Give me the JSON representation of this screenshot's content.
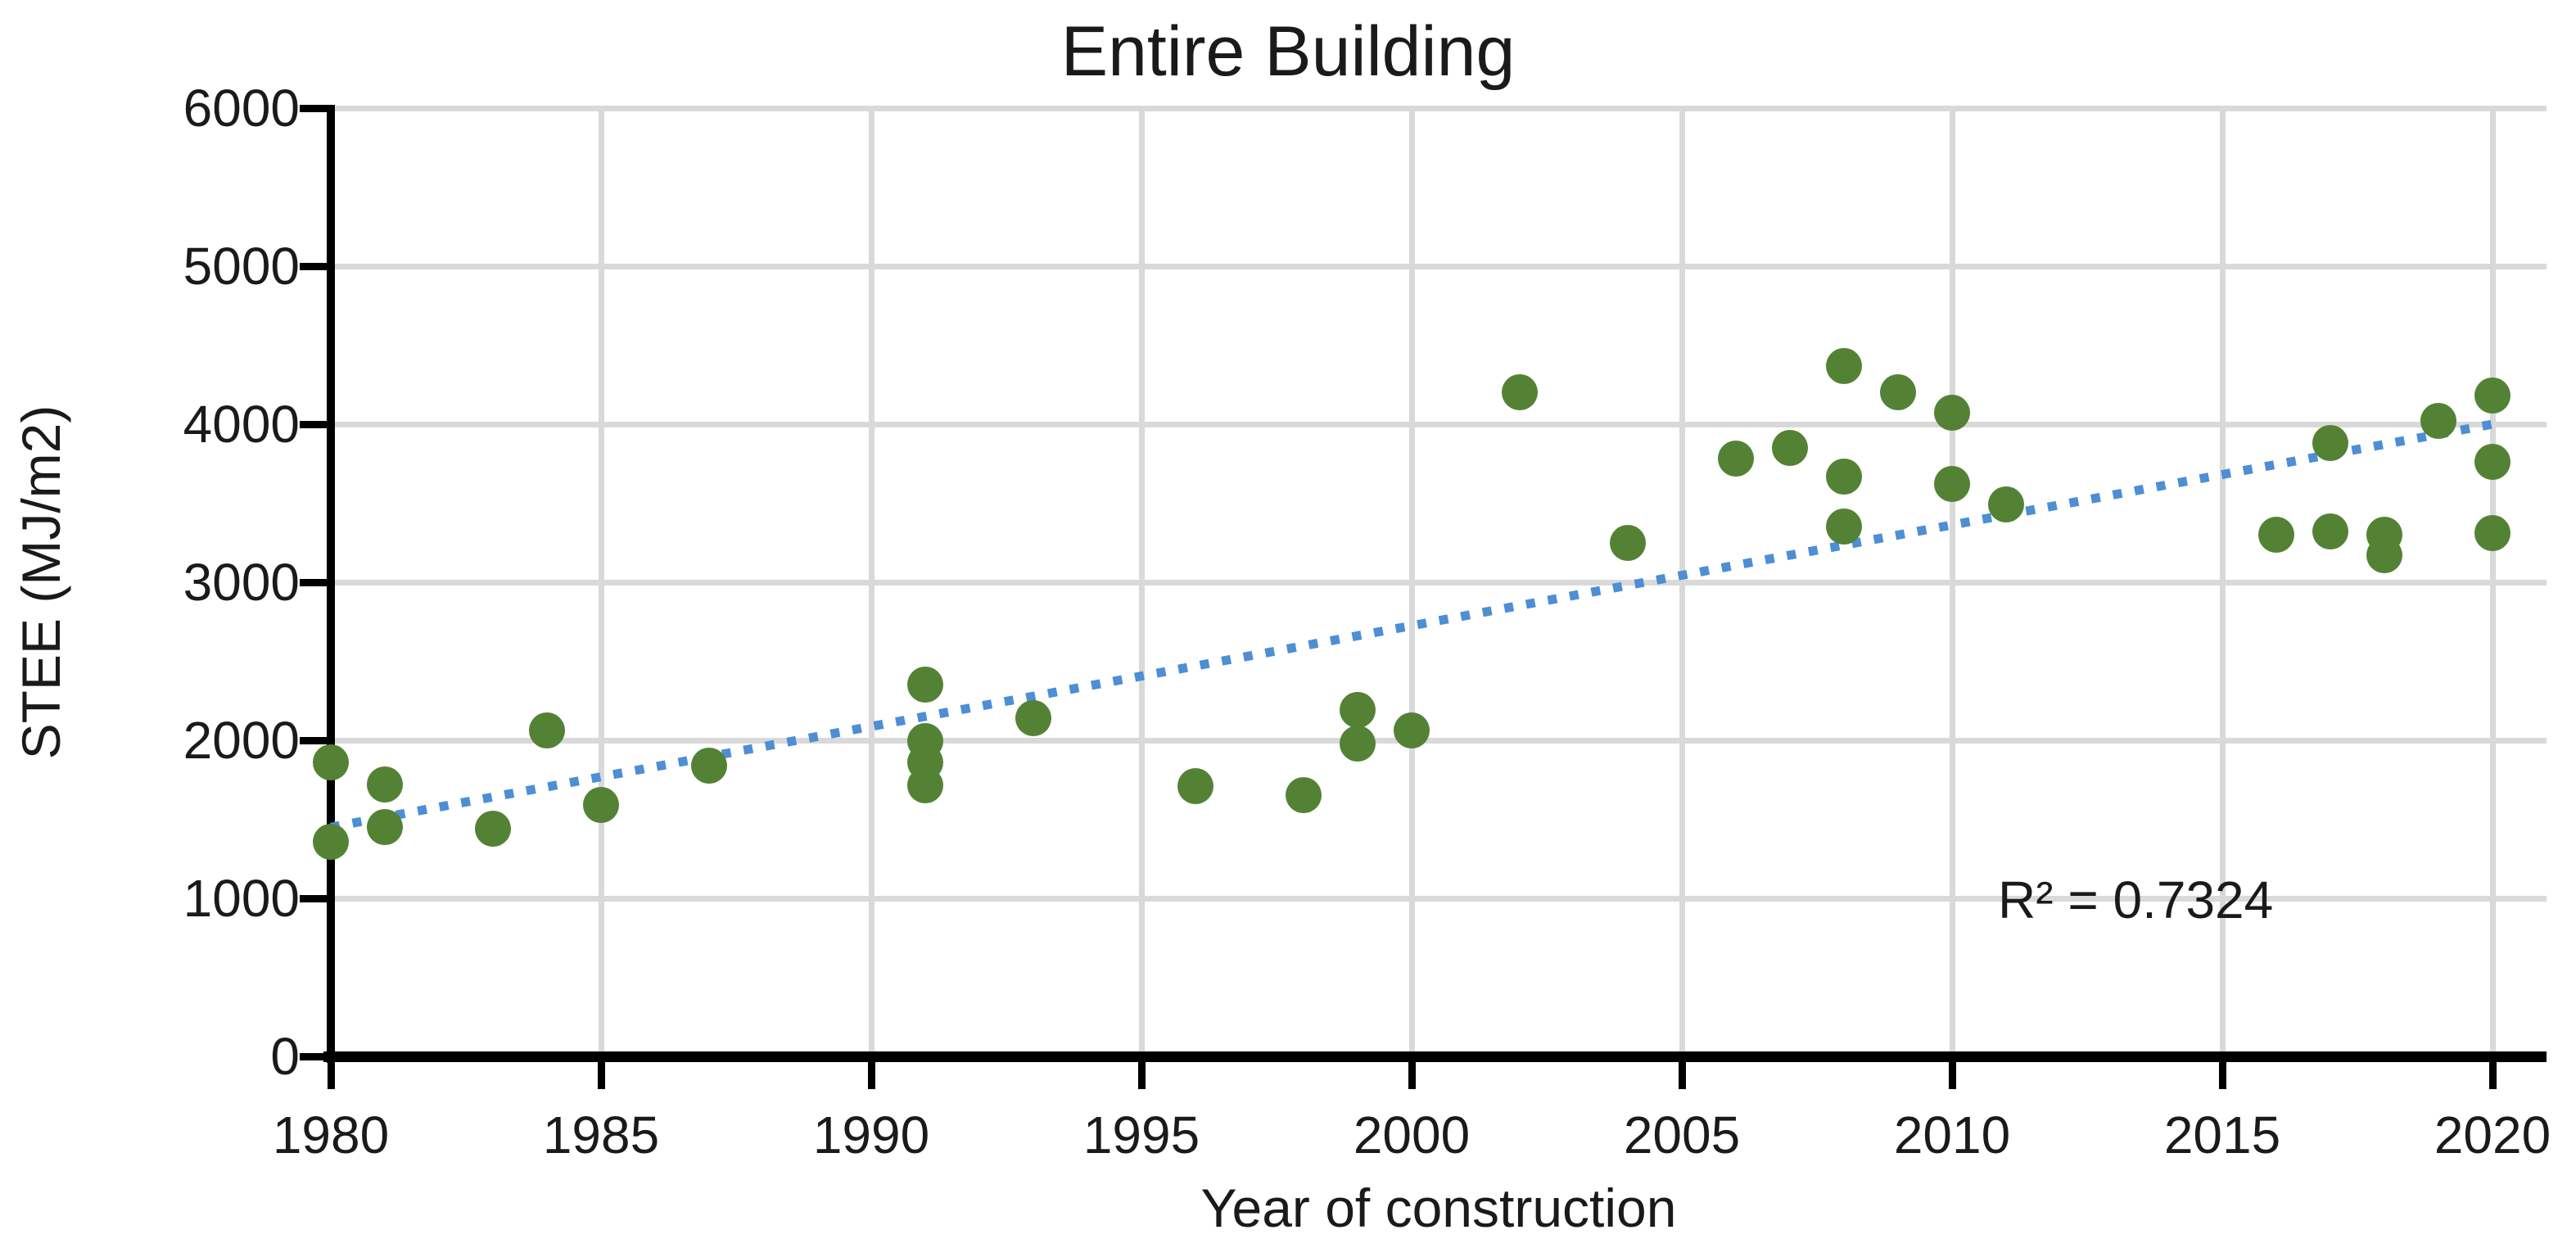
{
  "chart_data": {
    "type": "scatter",
    "title": "Entire Building",
    "xlabel": "Year of construction",
    "ylabel": "STEE (MJ/m2)",
    "xlim": [
      1980,
      2021
    ],
    "ylim": [
      0,
      6000
    ],
    "x_ticks": [
      1980,
      1985,
      1990,
      1995,
      2000,
      2005,
      2010,
      2015,
      2020
    ],
    "y_ticks": [
      0,
      1000,
      2000,
      3000,
      4000,
      5000,
      6000
    ],
    "grid": true,
    "legend": "none",
    "series": [
      {
        "name": "STEE",
        "marker": "circle",
        "points": [
          {
            "x": 1980,
            "y": 1860
          },
          {
            "x": 1980,
            "y": 1360
          },
          {
            "x": 1981,
            "y": 1720
          },
          {
            "x": 1981,
            "y": 1450
          },
          {
            "x": 1983,
            "y": 1440
          },
          {
            "x": 1984,
            "y": 2060
          },
          {
            "x": 1985,
            "y": 1590
          },
          {
            "x": 1987,
            "y": 1840
          },
          {
            "x": 1991,
            "y": 2350
          },
          {
            "x": 1991,
            "y": 1995
          },
          {
            "x": 1991,
            "y": 1860
          },
          {
            "x": 1991,
            "y": 1715
          },
          {
            "x": 1993,
            "y": 2140
          },
          {
            "x": 1996,
            "y": 1710
          },
          {
            "x": 1998,
            "y": 1655
          },
          {
            "x": 1999,
            "y": 2190
          },
          {
            "x": 1999,
            "y": 1980
          },
          {
            "x": 2000,
            "y": 2060
          },
          {
            "x": 2002,
            "y": 4200
          },
          {
            "x": 2004,
            "y": 3250
          },
          {
            "x": 2006,
            "y": 3780
          },
          {
            "x": 2007,
            "y": 3850
          },
          {
            "x": 2008,
            "y": 4370
          },
          {
            "x": 2008,
            "y": 3670
          },
          {
            "x": 2008,
            "y": 3350
          },
          {
            "x": 2009,
            "y": 4200
          },
          {
            "x": 2010,
            "y": 4070
          },
          {
            "x": 2010,
            "y": 3620
          },
          {
            "x": 2011,
            "y": 3490
          },
          {
            "x": 2016,
            "y": 3300
          },
          {
            "x": 2017,
            "y": 3880
          },
          {
            "x": 2017,
            "y": 3320
          },
          {
            "x": 2018,
            "y": 3300
          },
          {
            "x": 2018,
            "y": 3170
          },
          {
            "x": 2019,
            "y": 4020
          },
          {
            "x": 2020,
            "y": 4180
          },
          {
            "x": 2020,
            "y": 3760
          },
          {
            "x": 2020,
            "y": 3310
          }
        ]
      }
    ],
    "trendline": {
      "style": "dotted",
      "x1": 1980,
      "y1": 1450,
      "x2": 2020,
      "y2": 4000,
      "r_squared": 0.7324,
      "label": "R² = 0.7324"
    }
  },
  "colors": {
    "marker_green": "#548235",
    "trendline_blue": "#4d8ed5",
    "gridline_gray": "#d9d9d9",
    "axis_black": "#000000",
    "text": "#1a1a1a",
    "background": "#ffffff"
  }
}
